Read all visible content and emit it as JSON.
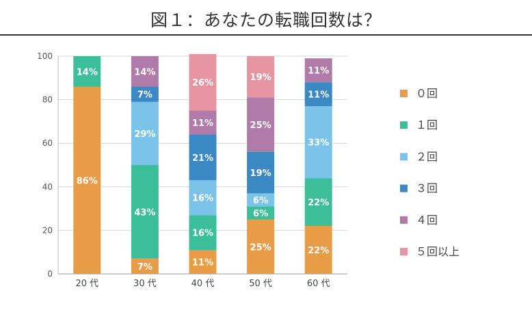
{
  "chart_data": {
    "type": "bar",
    "stacked": true,
    "title": "図１：あなたの転職回数は？",
    "xlabel": "",
    "ylabel": "",
    "ylim": [
      0,
      100
    ],
    "yticks": [
      "0",
      "20",
      "40",
      "60",
      "80",
      "100"
    ],
    "grid": true,
    "legend_position": "right",
    "categories": [
      "20 代",
      "30 代",
      "40 代",
      "50 代",
      "60 代"
    ],
    "series": [
      {
        "name": "０回",
        "color": "#E89C45",
        "values": [
          86,
          7,
          11,
          25,
          22
        ]
      },
      {
        "name": "１回",
        "color": "#3DBE9A",
        "values": [
          14,
          43,
          16,
          6,
          22
        ]
      },
      {
        "name": "２回",
        "color": "#7CC3EA",
        "values": [
          0,
          29,
          16,
          6,
          33
        ]
      },
      {
        "name": "３回",
        "color": "#3A88C4",
        "values": [
          0,
          7,
          21,
          19,
          11
        ]
      },
      {
        "name": "４回",
        "color": "#B07BA8",
        "values": [
          0,
          14,
          11,
          25,
          11
        ]
      },
      {
        "name": "５回以上",
        "color": "#E895A3",
        "values": [
          0,
          0,
          26,
          19,
          0
        ]
      }
    ]
  }
}
